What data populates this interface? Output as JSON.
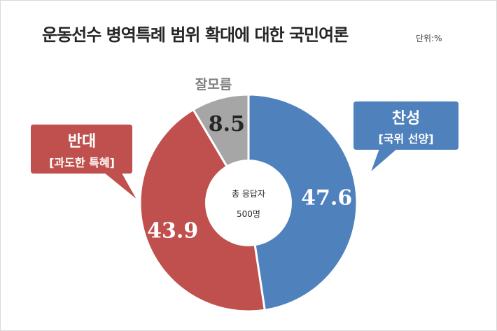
{
  "title": "운동선수 병역특례 범위 확대에 대한 국민여론",
  "unit": "단위:%",
  "center": {
    "line1": "총 응답자",
    "line2": "500명"
  },
  "labels": {
    "dunno": "잘모름",
    "pro_main": "찬성",
    "pro_sub": "[국위 선양]",
    "con_main": "반대",
    "con_sub": "[과도한 특혜]"
  },
  "chart_data": {
    "type": "pie",
    "variant": "donut",
    "categories": [
      "찬성",
      "반대",
      "잘모름"
    ],
    "values": [
      47.6,
      43.9,
      8.5
    ],
    "value_labels": [
      "47.6",
      "43.9",
      "8.5"
    ],
    "colors": [
      "#4f81bd",
      "#c0504d",
      "#a6a6a6"
    ],
    "title": "운동선수 병역특례 범위 확대에 대한 국민여론"
  }
}
